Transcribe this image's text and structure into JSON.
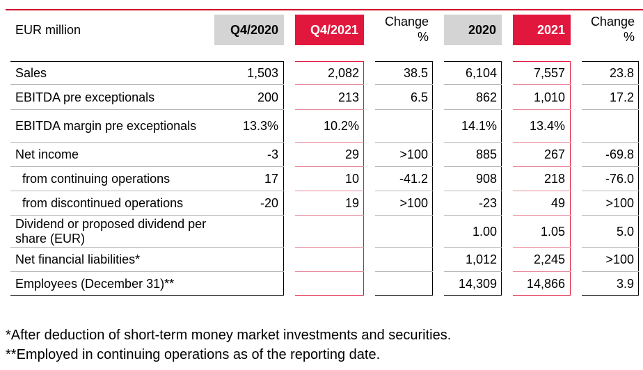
{
  "header": {
    "unit": "EUR million",
    "q4_2020": "Q4/2020",
    "q4_2021": "Q4/2021",
    "change_q": [
      "Change",
      "%"
    ],
    "y2020": "2020",
    "y2021": "2021",
    "change_y": [
      "Change",
      "%"
    ]
  },
  "rows": [
    {
      "label": "Sales",
      "q4_2020": "1,503",
      "q4_2021": "2,082",
      "change_q": "38.5",
      "y2020": "6,104",
      "y2021": "7,557",
      "change_y": "23.8"
    },
    {
      "label": "EBITDA pre exceptionals",
      "q4_2020": "200",
      "q4_2021": "213",
      "change_q": "6.5",
      "y2020": "862",
      "y2021": "1,010",
      "change_y": "17.2"
    },
    {
      "label": "EBITDA margin pre exceptionals",
      "q4_2020": "13.3%",
      "q4_2021": "10.2%",
      "change_q": "",
      "y2020": "14.1%",
      "y2021": "13.4%",
      "change_y": ""
    },
    {
      "label": "Net income",
      "q4_2020": "-3",
      "q4_2021": "29",
      "change_q": ">100",
      "y2020": "885",
      "y2021": "267",
      "change_y": "-69.8"
    },
    {
      "label": "from continuing operations",
      "q4_2020": "17",
      "q4_2021": "10",
      "change_q": "-41.2",
      "y2020": "908",
      "y2021": "218",
      "change_y": "-76.0"
    },
    {
      "label": "from discontinued operations",
      "q4_2020": "-20",
      "q4_2021": "19",
      "change_q": ">100",
      "y2020": "-23",
      "y2021": "49",
      "change_y": ">100"
    },
    {
      "label": "Dividend or proposed dividend per share (EUR)",
      "q4_2020": "",
      "q4_2021": "",
      "change_q": "",
      "y2020": "1.00",
      "y2021": "1.05",
      "change_y": "5.0"
    },
    {
      "label": "Net financial liabilities*",
      "q4_2020": "",
      "q4_2021": "",
      "change_q": "",
      "y2020": "1,012",
      "y2021": "2,245",
      "change_y": ">100"
    },
    {
      "label": "Employees (December 31)**",
      "q4_2020": "",
      "q4_2021": "",
      "change_q": "",
      "y2020": "14,309",
      "y2021": "14,866",
      "change_y": "3.9"
    }
  ],
  "footnotes": [
    "*After deduction of short-term money market investments and securities.",
    "**Employed in continuing operations as of the reporting date."
  ],
  "colors": {
    "accent_red": "#e2173d",
    "header_grey": "#d4d4d4"
  }
}
